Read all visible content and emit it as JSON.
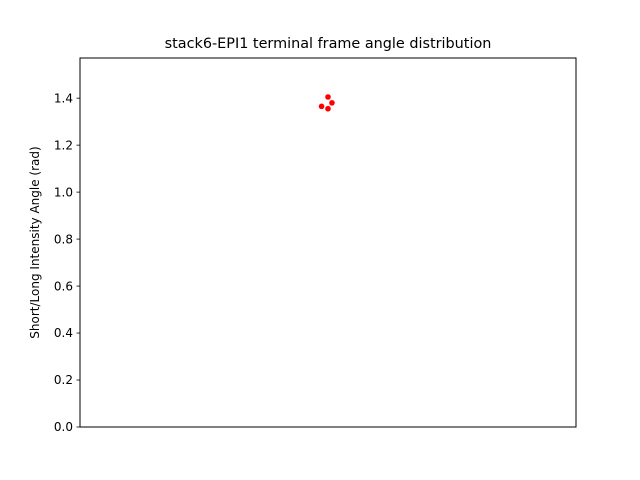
{
  "chart_data": {
    "type": "scatter",
    "title": "stack6-EPI1 terminal frame angle distribution",
    "xlabel": "",
    "ylabel": "Short/Long Intensity Angle (rad)",
    "xlim": [
      -0.5,
      0.5
    ],
    "ylim": [
      0.0,
      1.571
    ],
    "yticks": [
      0.0,
      0.2,
      0.4,
      0.6,
      0.8,
      1.0,
      1.2,
      1.4
    ],
    "ytick_labels": [
      "0.0",
      "0.2",
      "0.4",
      "0.6",
      "0.8",
      "1.0",
      "1.2",
      "1.4"
    ],
    "show_xticks": false,
    "grid": false,
    "legend": "none",
    "marker_color": "#ff0000",
    "points": [
      {
        "x": -0.013,
        "y": 1.365
      },
      {
        "x": 0.0,
        "y": 1.405
      },
      {
        "x": 0.008,
        "y": 1.38
      },
      {
        "x": 0.0,
        "y": 1.355
      }
    ]
  }
}
